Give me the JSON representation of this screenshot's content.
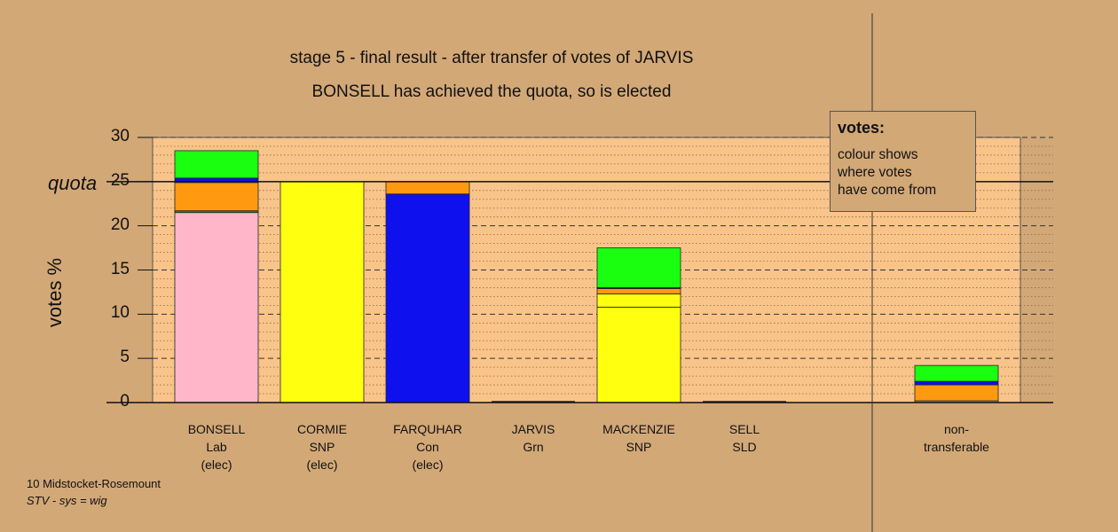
{
  "title_line1": "stage 5 - final result - after transfer of votes of JARVIS",
  "title_line2": "BONSELL has achieved the quota, so is elected",
  "legend": {
    "heading": "votes:",
    "text_lines": [
      "colour shows",
      "where votes",
      "have come from"
    ]
  },
  "footer": {
    "line1": "10 Midstocket-Rosemount",
    "line2": "STV - sys = wig"
  },
  "colors": {
    "background": "#d2a877",
    "plot_background": "#f8c48a",
    "pink": "#ffb6c9",
    "yellow": "#ffff10",
    "blue": "#0f10ee",
    "orange": "#ff9a10",
    "green": "#1aff10",
    "darkgreen": "#10a010",
    "gray": "#999999"
  },
  "chart_data": {
    "type": "bar",
    "stacked": true,
    "ylabel": "votes %",
    "ylim": [
      0,
      30
    ],
    "yticks": [
      0,
      5,
      10,
      15,
      20,
      25,
      30
    ],
    "quota": 25,
    "quota_label": "quota",
    "grid": true,
    "categories": [
      {
        "name": "BONSELL",
        "party": "Lab",
        "status": "(elec)"
      },
      {
        "name": "CORMIE",
        "party": "SNP",
        "status": "(elec)"
      },
      {
        "name": "FARQUHAR",
        "party": "Con",
        "status": "(elec)"
      },
      {
        "name": "JARVIS",
        "party": "Grn",
        "status": ""
      },
      {
        "name": "MACKENZIE",
        "party": "SNP",
        "status": ""
      },
      {
        "name": "SELL",
        "party": "SLD",
        "status": ""
      },
      {
        "name": "non-",
        "party": "transferable",
        "status": ""
      }
    ],
    "stacks": [
      [
        {
          "color": "pink",
          "value": 21.5
        },
        {
          "color": "darkgreen",
          "value": 0.2
        },
        {
          "color": "orange",
          "value": 3.2
        },
        {
          "color": "blue",
          "value": 0.5
        },
        {
          "color": "green",
          "value": 3.1
        }
      ],
      [
        {
          "color": "yellow",
          "value": 25.0
        }
      ],
      [
        {
          "color": "blue",
          "value": 23.6
        },
        {
          "color": "orange",
          "value": 1.4
        }
      ],
      [],
      [
        {
          "color": "yellow",
          "value": 10.8
        },
        {
          "color": "yellow",
          "value": 1.5
        },
        {
          "color": "orange",
          "value": 0.6
        },
        {
          "color": "blue",
          "value": 0.1
        },
        {
          "color": "green",
          "value": 4.5
        }
      ],
      [],
      [
        {
          "color": "gray",
          "value": 0.2
        },
        {
          "color": "orange",
          "value": 1.8
        },
        {
          "color": "blue",
          "value": 0.4
        },
        {
          "color": "green",
          "value": 1.8
        }
      ]
    ]
  }
}
